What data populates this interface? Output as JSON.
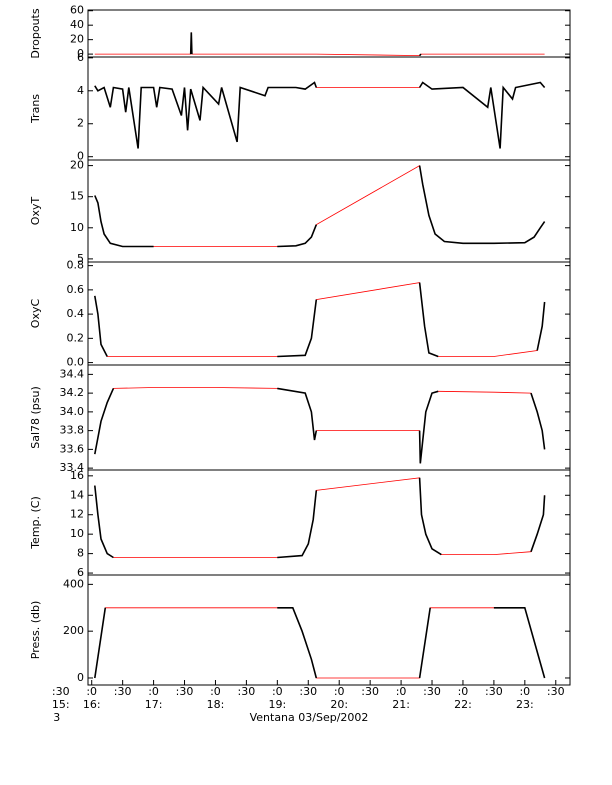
{
  "chart_data": [
    {
      "type": "line",
      "ylabel": "Dropouts",
      "color": "#000000",
      "gap_color": "#ff0000",
      "xlim": [
        15.94,
        23.73
      ],
      "ylim": [
        -4,
        61
      ],
      "yticks": [
        0,
        20,
        40,
        60
      ],
      "x": [
        16.05,
        17.6,
        17.61,
        17.62,
        19.63,
        21.3,
        21.32,
        23.32
      ],
      "values": [
        0,
        0,
        30,
        0,
        0,
        -2,
        0,
        0
      ]
    },
    {
      "type": "line",
      "ylabel": "Trans",
      "color": "#000000",
      "gap_color": "#ff0000",
      "xlim": [
        15.94,
        23.73
      ],
      "ylim": [
        -0.2,
        6.05
      ],
      "yticks": [
        0,
        2,
        4,
        6
      ],
      "x": [
        16.05,
        16.1,
        16.2,
        16.3,
        16.35,
        16.5,
        16.55,
        16.6,
        16.75,
        16.8,
        17,
        17.05,
        17.1,
        17.3,
        17.45,
        17.5,
        17.55,
        17.6,
        17.75,
        17.8,
        18.05,
        18.1,
        18.35,
        18.4,
        18.8,
        18.85,
        19.3,
        19.45,
        19.6,
        19.63,
        21.3,
        21.35,
        21.5,
        22.0,
        22.4,
        22.45,
        22.6,
        22.65,
        22.8,
        22.85,
        23.25,
        23.32
      ],
      "values": [
        4.3,
        4.0,
        4.2,
        3.0,
        4.2,
        4.1,
        2.7,
        4.2,
        0.5,
        4.2,
        4.2,
        3.0,
        4.2,
        4.1,
        2.5,
        4.2,
        1.6,
        4.1,
        2.2,
        4.2,
        3.2,
        4.2,
        0.9,
        4.2,
        3.7,
        4.2,
        4.2,
        4.1,
        4.5,
        4.2,
        4.2,
        4.5,
        4.1,
        4.2,
        3.0,
        4.2,
        0.5,
        4.2,
        3.5,
        4.2,
        4.5,
        4.2
      ]
    },
    {
      "type": "line",
      "ylabel": "OxyT",
      "color": "#000000",
      "gap_color": "#ff0000",
      "xlim": [
        15.94,
        23.73
      ],
      "ylim": [
        4.5,
        20.9
      ],
      "yticks": [
        5,
        10,
        15,
        20
      ],
      "x": [
        16.05,
        16.1,
        16.15,
        16.2,
        16.3,
        16.5,
        17,
        18,
        19,
        19.3,
        19.45,
        19.55,
        19.63,
        21.3,
        21.35,
        21.45,
        21.55,
        21.7,
        22,
        22.5,
        23,
        23.15,
        23.25,
        23.32
      ],
      "values": [
        15.2,
        14,
        11,
        9,
        7.5,
        7.0,
        7.0,
        7.0,
        7.0,
        7.1,
        7.5,
        8.5,
        10.5,
        20,
        17,
        12,
        9,
        7.8,
        7.5,
        7.5,
        7.6,
        8.5,
        10,
        11
      ]
    },
    {
      "type": "line",
      "ylabel": "OxyC",
      "color": "#000000",
      "gap_color": "#ff0000",
      "xlim": [
        15.94,
        23.73
      ],
      "ylim": [
        -0.02,
        0.83
      ],
      "yticks": [
        {
          "value": 0,
          "label": "0.0"
        },
        {
          "value": 0.2,
          "label": "0.2"
        },
        {
          "value": 0.4,
          "label": "0.4"
        },
        {
          "value": 0.6,
          "label": "0.6"
        },
        {
          "value": 0.8,
          "label": "0.8"
        }
      ],
      "x": [
        16.05,
        16.1,
        16.15,
        16.25,
        17,
        18,
        19,
        19.45,
        19.55,
        19.63,
        21.3,
        21.38,
        21.45,
        21.6,
        22.5,
        23.2,
        23.28,
        23.32
      ],
      "values": [
        0.55,
        0.4,
        0.15,
        0.05,
        0.05,
        0.05,
        0.05,
        0.06,
        0.2,
        0.52,
        0.66,
        0.3,
        0.08,
        0.05,
        0.05,
        0.1,
        0.3,
        0.5
      ]
    },
    {
      "type": "line",
      "ylabel": "Sal78 (psu)",
      "color": "#000000",
      "gap_color": "#ff0000",
      "xlim": [
        15.94,
        23.73
      ],
      "ylim": [
        33.38,
        34.5
      ],
      "yticks": [
        33.4,
        33.6,
        33.8,
        {
          "value": 34,
          "label": "34.0"
        },
        34.2,
        34.4
      ],
      "x": [
        16.05,
        16.15,
        16.25,
        16.35,
        17,
        18,
        19,
        19.45,
        19.55,
        19.6,
        19.63,
        21.3,
        21.31,
        21.4,
        21.5,
        21.6,
        22.5,
        23.1,
        23.2,
        23.28,
        23.32
      ],
      "values": [
        33.55,
        33.9,
        34.1,
        34.25,
        34.26,
        34.26,
        34.25,
        34.2,
        34.0,
        33.7,
        33.8,
        33.8,
        33.45,
        34.0,
        34.2,
        34.22,
        34.21,
        34.2,
        34.0,
        33.8,
        33.6
      ]
    },
    {
      "type": "line",
      "ylabel": "Temp. (C)",
      "color": "#000000",
      "gap_color": "#ff0000",
      "xlim": [
        15.94,
        23.73
      ],
      "ylim": [
        5.8,
        16.6
      ],
      "yticks": [
        6,
        8,
        10,
        12,
        14,
        16
      ],
      "x": [
        16.05,
        16.1,
        16.15,
        16.25,
        16.35,
        17,
        18,
        19,
        19.4,
        19.5,
        19.58,
        19.63,
        21.3,
        21.33,
        21.4,
        21.5,
        21.65,
        22.5,
        23.1,
        23.2,
        23.3,
        23.32
      ],
      "values": [
        15,
        12,
        9.5,
        8,
        7.6,
        7.6,
        7.6,
        7.6,
        7.8,
        9,
        11.5,
        14.5,
        15.8,
        12,
        10,
        8.5,
        7.9,
        7.9,
        8.2,
        10,
        12,
        14
      ]
    },
    {
      "type": "line",
      "ylabel": "Press. (db)",
      "color": "#000000",
      "gap_color": "#ff0000",
      "xlim": [
        15.94,
        23.73
      ],
      "ylim": [
        -30,
        440
      ],
      "yticks": [
        0,
        200,
        400
      ],
      "x": [
        16.05,
        16.22,
        17,
        18,
        19,
        19.25,
        19.4,
        19.55,
        19.63,
        21.3,
        21.47,
        22.5,
        23.0,
        23.32
      ],
      "values": [
        0,
        300,
        300,
        300,
        300,
        300,
        200,
        80,
        0,
        0,
        300,
        300,
        300,
        0
      ],
      "xticks": [
        {
          "value": 15.5,
          "label": ":30"
        },
        {
          "value": 16,
          "label": ":0"
        },
        {
          "value": 16.5,
          "label": ":30"
        },
        {
          "value": 17,
          "label": ":0"
        },
        {
          "value": 17.5,
          "label": ":30"
        },
        {
          "value": 18,
          "label": ":0"
        },
        {
          "value": 18.5,
          "label": ":30"
        },
        {
          "value": 19,
          "label": ":0"
        },
        {
          "value": 19.5,
          "label": ":30"
        },
        {
          "value": 20,
          "label": ":0"
        },
        {
          "value": 20.5,
          "label": ":30"
        },
        {
          "value": 21,
          "label": ":0"
        },
        {
          "value": 21.5,
          "label": ":30"
        },
        {
          "value": 22,
          "label": ":0"
        },
        {
          "value": 22.5,
          "label": ":30"
        },
        {
          "value": 23,
          "label": ":0"
        },
        {
          "value": 23.5,
          "label": ":30"
        }
      ],
      "x_hour_labels": [
        {
          "value": 15.5,
          "label": "15:"
        },
        {
          "value": 16,
          "label": "16:"
        },
        {
          "value": 17,
          "label": "17:"
        },
        {
          "value": 18,
          "label": "18:"
        },
        {
          "value": 19,
          "label": "19:"
        },
        {
          "value": 20,
          "label": "20:"
        },
        {
          "value": 21,
          "label": "21:"
        },
        {
          "value": 22,
          "label": "22:"
        },
        {
          "value": 23,
          "label": "23:"
        }
      ],
      "x_day_label": {
        "value": 15.5,
        "label": "3"
      },
      "xlabel": "Ventana 03/Sep/2002"
    }
  ]
}
